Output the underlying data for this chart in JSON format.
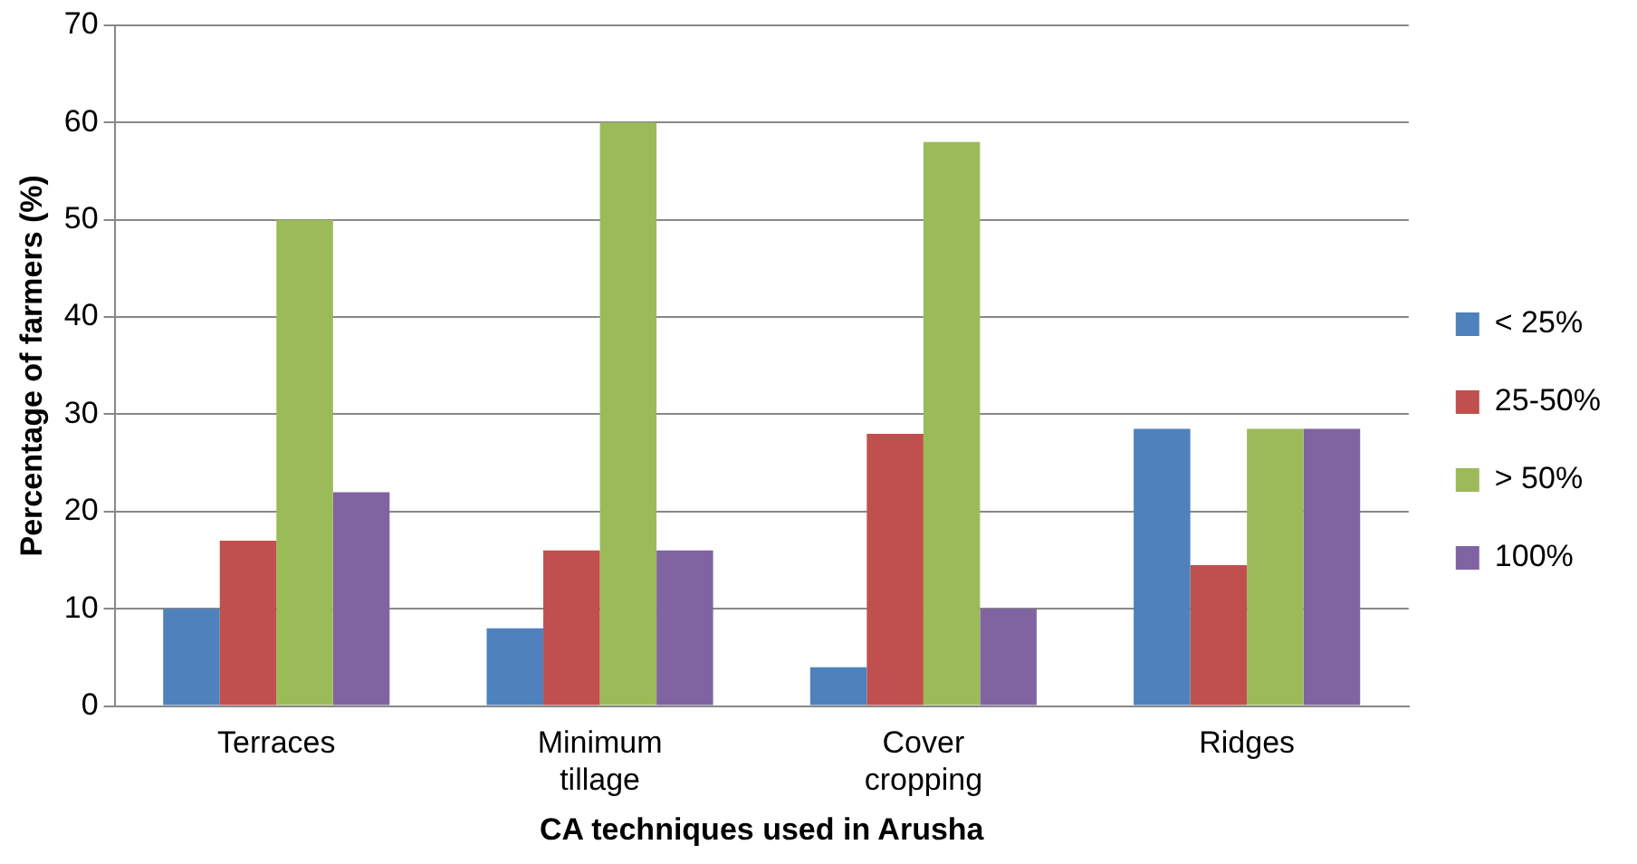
{
  "chart_data": {
    "type": "bar",
    "xlabel": "CA techniques used in Arusha",
    "ylabel": "Percentage of farmers (%)",
    "categories": [
      "Terraces",
      "Minimum tillage",
      "Cover cropping",
      "Ridges"
    ],
    "series": [
      {
        "name": "< 25%",
        "color": "#4f81bd",
        "values": [
          10,
          8,
          4,
          28.5
        ]
      },
      {
        "name": "25-50%",
        "color": "#c0504d",
        "values": [
          17,
          16,
          28,
          14.5
        ]
      },
      {
        "name": "> 50%",
        "color": "#9bbb59",
        "values": [
          50,
          60,
          58,
          28.5
        ]
      },
      {
        "name": "100%",
        "color": "#8064a2",
        "values": [
          22,
          16,
          10,
          28.5
        ]
      }
    ],
    "ylim": [
      0,
      70
    ],
    "yticks": [
      0,
      10,
      20,
      30,
      40,
      50,
      60,
      70
    ],
    "grid": "y",
    "legend": "right"
  }
}
